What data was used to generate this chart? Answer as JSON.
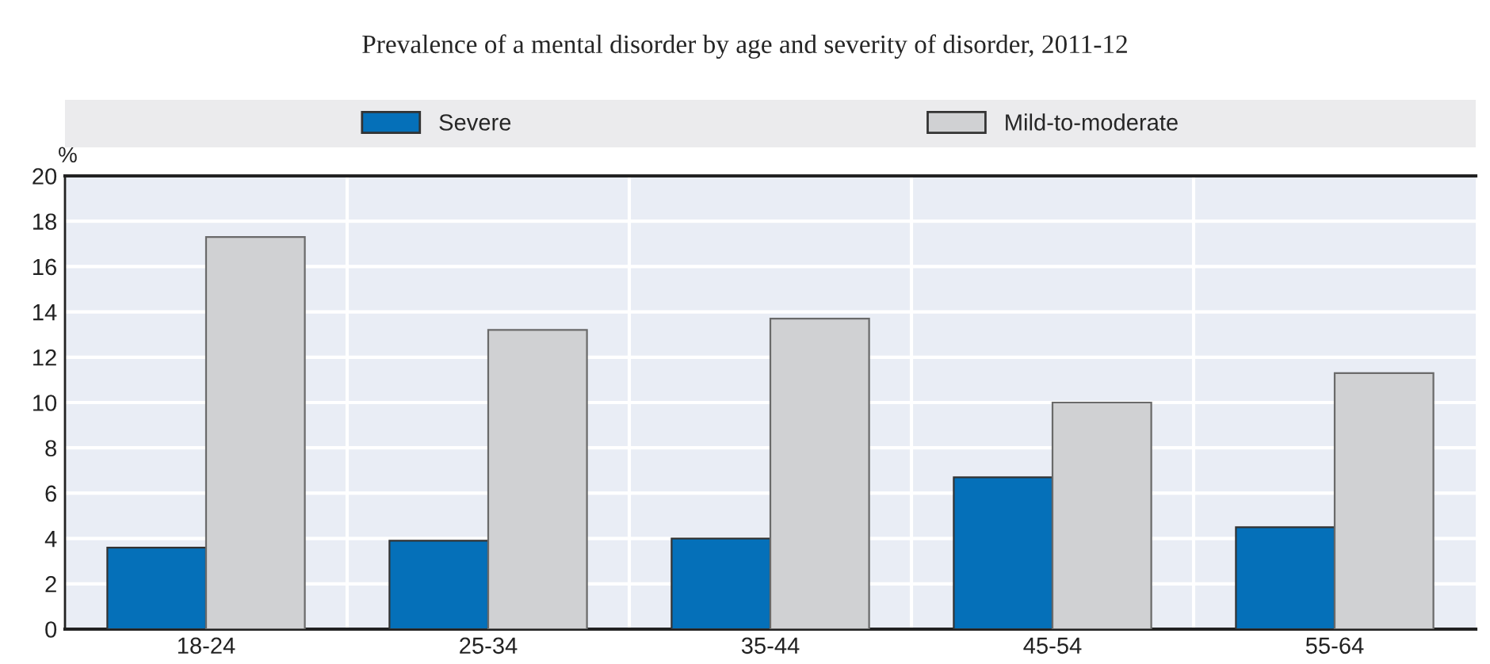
{
  "chart_data": {
    "type": "bar",
    "title": "Prevalence of a mental disorder by age and severity of disorder, 2011-12",
    "ylabel": "%",
    "categories": [
      "18-24",
      "25-34",
      "35-44",
      "45-54",
      "55-64"
    ],
    "series": [
      {
        "name": "Severe",
        "color": "#0570b9",
        "values": [
          3.6,
          3.9,
          4.0,
          6.7,
          4.5
        ]
      },
      {
        "name": "Mild-to-moderate",
        "color": "#d0d1d3",
        "values": [
          17.3,
          13.2,
          13.7,
          10.0,
          11.3
        ]
      }
    ],
    "ylim": [
      0,
      20
    ],
    "yticks": [
      0,
      2,
      4,
      6,
      8,
      10,
      12,
      14,
      16,
      18,
      20
    ],
    "grid": true,
    "legend": "top"
  }
}
